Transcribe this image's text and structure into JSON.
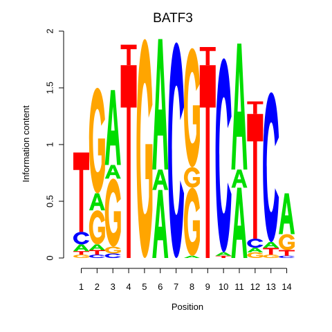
{
  "chart_data": {
    "type": "sequence-logo",
    "title": "BATF3",
    "xlabel": "Position",
    "ylabel": "Information content",
    "ylim": [
      0,
      2
    ],
    "y_ticks": [
      0,
      0.5,
      1,
      1.5,
      2
    ],
    "y_tick_labels": [
      "0",
      "0.5",
      "1",
      "1.5",
      "2"
    ],
    "x_ticks": [
      "1",
      "2",
      "3",
      "4",
      "5",
      "6",
      "7",
      "8",
      "9",
      "10",
      "11",
      "12",
      "13",
      "14"
    ],
    "colors": {
      "A": "#00dd00",
      "C": "#0000ff",
      "G": "#ffa500",
      "T": "#ff0000"
    },
    "positions": [
      {
        "position": 1,
        "letters": [
          {
            "base": "G",
            "height": 0.03
          },
          {
            "base": "T",
            "height": 0.03
          },
          {
            "base": "A",
            "height": 0.06
          },
          {
            "base": "C",
            "height": 0.11
          },
          {
            "base": "T",
            "height": 0.7
          }
        ]
      },
      {
        "position": 2,
        "letters": [
          {
            "base": "C",
            "height": 0.03
          },
          {
            "base": "T",
            "height": 0.04
          },
          {
            "base": "A",
            "height": 0.05
          },
          {
            "base": "G",
            "height": 0.3
          },
          {
            "base": "A",
            "height": 0.15
          },
          {
            "base": "G",
            "height": 0.93
          }
        ]
      },
      {
        "position": 3,
        "letters": [
          {
            "base": "C",
            "height": 0.04
          },
          {
            "base": "G",
            "height": 0.06
          },
          {
            "base": "G",
            "height": 0.6
          },
          {
            "base": "A",
            "height": 0.12
          },
          {
            "base": "A",
            "height": 0.66
          }
        ]
      },
      {
        "position": 4,
        "letters": [
          {
            "base": "T",
            "height": 1.7
          },
          {
            "base": "T",
            "height": 0.18
          }
        ]
      },
      {
        "position": 5,
        "letters": [
          {
            "base": "G",
            "height": 1.93
          }
        ]
      },
      {
        "position": 6,
        "letters": [
          {
            "base": "A",
            "height": 0.6
          },
          {
            "base": "A",
            "height": 0.18
          },
          {
            "base": "A",
            "height": 1.15
          }
        ]
      },
      {
        "position": 7,
        "letters": [
          {
            "base": "C",
            "height": 1.9
          }
        ]
      },
      {
        "position": 8,
        "letters": [
          {
            "base": "A",
            "height": 0.02
          },
          {
            "base": "G",
            "height": 0.6
          },
          {
            "base": "G",
            "height": 0.18
          },
          {
            "base": "G",
            "height": 1.05
          }
        ]
      },
      {
        "position": 9,
        "letters": [
          {
            "base": "T",
            "height": 1.7
          },
          {
            "base": "T",
            "height": 0.16
          }
        ]
      },
      {
        "position": 10,
        "letters": [
          {
            "base": "T",
            "height": 0.02
          },
          {
            "base": "A",
            "height": 0.03
          },
          {
            "base": "C",
            "height": 1.71
          }
        ]
      },
      {
        "position": 11,
        "letters": [
          {
            "base": "A",
            "height": 0.62
          },
          {
            "base": "A",
            "height": 0.16
          },
          {
            "base": "A",
            "height": 1.11
          }
        ]
      },
      {
        "position": 12,
        "letters": [
          {
            "base": "G",
            "height": 0.05
          },
          {
            "base": "A",
            "height": 0.04
          },
          {
            "base": "C",
            "height": 0.08
          },
          {
            "base": "T",
            "height": 1.1
          },
          {
            "base": "T",
            "height": 0.11
          }
        ]
      },
      {
        "position": 13,
        "letters": [
          {
            "base": "G",
            "height": 0.03
          },
          {
            "base": "T",
            "height": 0.06
          },
          {
            "base": "A",
            "height": 0.05
          },
          {
            "base": "C",
            "height": 1.32
          }
        ]
      },
      {
        "position": 14,
        "letters": [
          {
            "base": "C",
            "height": 0.02
          },
          {
            "base": "T",
            "height": 0.05
          },
          {
            "base": "G",
            "height": 0.14
          },
          {
            "base": "A",
            "height": 0.36
          }
        ]
      }
    ]
  }
}
